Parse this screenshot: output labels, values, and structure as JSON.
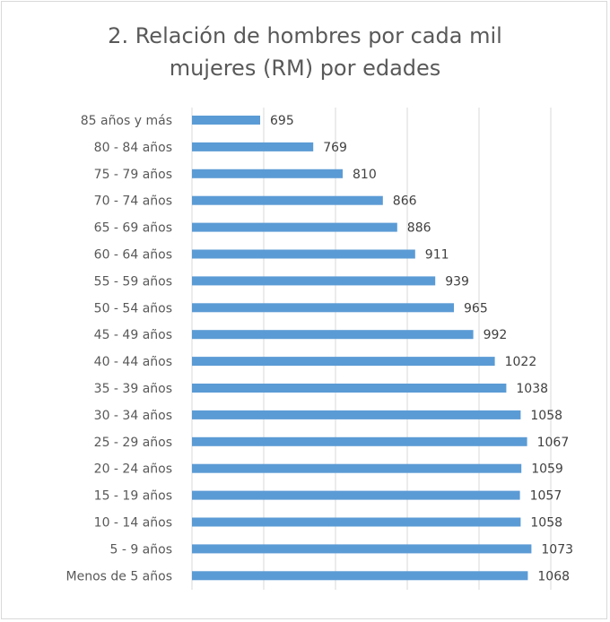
{
  "chart_data": {
    "type": "bar",
    "orientation": "horizontal",
    "title": "2. Relación de hombres por cada mil mujeres (RM) por edades",
    "title_lines": [
      "2. Relación de hombres por cada mil",
      "mujeres (RM) por edades"
    ],
    "categories": [
      "85 años y más",
      "80 - 84 años",
      "75 - 79 años",
      "70 - 74 años",
      "65 - 69 años",
      "60 - 64 años",
      "55 - 59 años",
      "50 - 54 años",
      "45 - 49 años",
      "40 - 44 años",
      "35 - 39 años",
      "30 - 34 años",
      "25 - 29 años",
      "20 - 24 años",
      "15 - 19 años",
      "10 - 14 años",
      "5 - 9 años",
      "Menos de 5 años"
    ],
    "values": [
      695,
      769,
      810,
      866,
      886,
      911,
      939,
      965,
      992,
      1022,
      1038,
      1058,
      1067,
      1059,
      1057,
      1058,
      1073,
      1068
    ],
    "xlim": [
      600,
      1100
    ],
    "grid": true,
    "bar_color": "#5b9bd5",
    "data_labels": true
  }
}
